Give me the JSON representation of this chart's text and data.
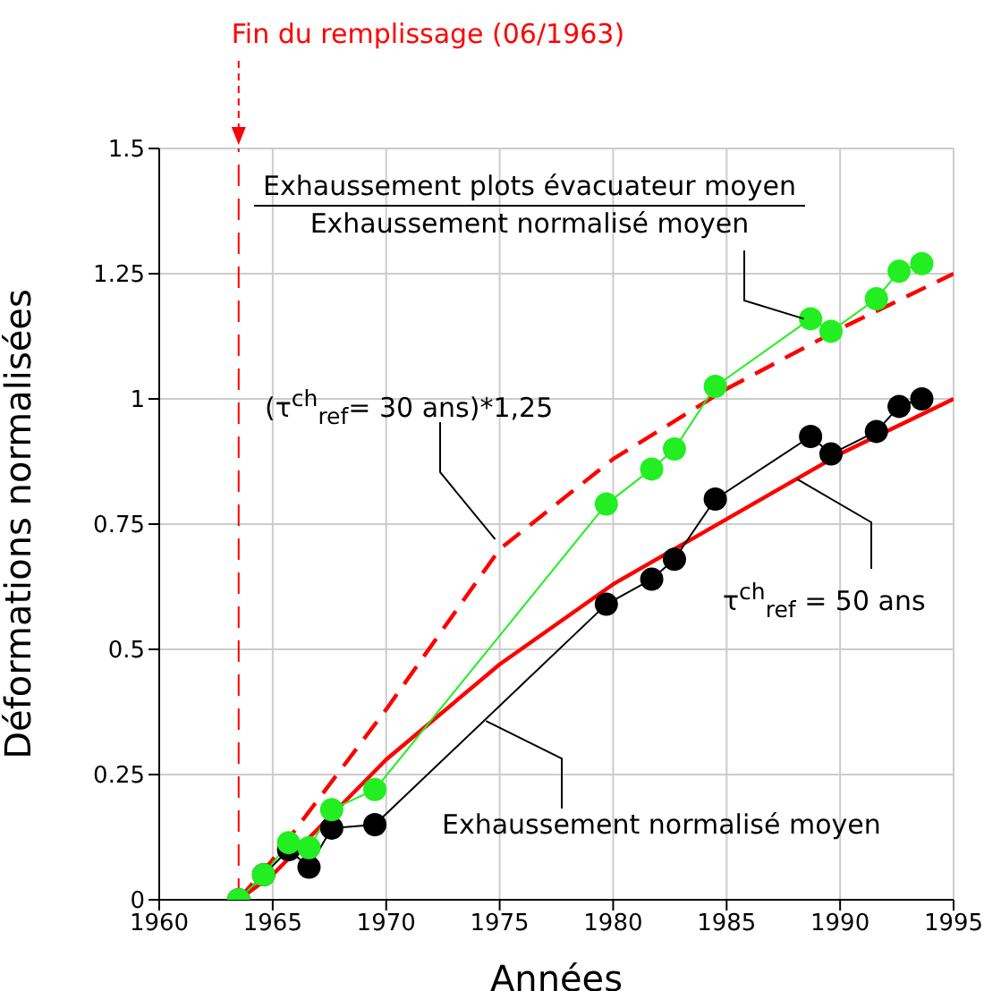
{
  "chart_data": {
    "type": "line",
    "xlabel": "Années",
    "ylabel": "Déformations normalisées",
    "xlim": [
      1960,
      1995
    ],
    "xticks": [
      1960,
      1965,
      1970,
      1975,
      1980,
      1985,
      1990,
      1995
    ],
    "ylim": [
      0,
      1.5
    ],
    "yticks": [
      0,
      0.25,
      0.5,
      0.75,
      1,
      1.25,
      1.5
    ],
    "grid": true,
    "series": [
      {
        "type": "line",
        "color": "#ff0000",
        "line_style": "dashed",
        "marker": "none",
        "x": [
          1963.5,
          1965,
          1970,
          1975,
          1980,
          1985,
          1990,
          1995
        ],
        "values": [
          0,
          0.08,
          0.38,
          0.7,
          0.88,
          1.02,
          1.14,
          1.25
        ]
      },
      {
        "type": "line",
        "color": "#ff0000",
        "line_style": "solid",
        "marker": "none",
        "x": [
          1963.5,
          1965,
          1970,
          1975,
          1980,
          1985,
          1990,
          1995
        ],
        "values": [
          0,
          0.05,
          0.28,
          0.47,
          0.63,
          0.76,
          0.89,
          1.0
        ]
      },
      {
        "type": "line",
        "color": "#000000",
        "line_style": "solid",
        "marker": "circle",
        "x": [
          1963.5,
          1964.6,
          1965.7,
          1966.6,
          1967.6,
          1969.5,
          1979.7,
          1981.7,
          1982.7,
          1984.5,
          1988.7,
          1989.6,
          1991.6,
          1992.6,
          1993.6
        ],
        "values": [
          0,
          0.05,
          0.1,
          0.065,
          0.143,
          0.15,
          0.59,
          0.64,
          0.68,
          0.8,
          0.925,
          0.89,
          0.935,
          0.985,
          1.0
        ]
      },
      {
        "type": "line",
        "color": "#22ee22",
        "line_style": "solid",
        "marker": "circle",
        "x": [
          1963.5,
          1964.6,
          1965.7,
          1966.6,
          1967.6,
          1969.5,
          1979.7,
          1981.7,
          1982.7,
          1984.5,
          1988.7,
          1989.6,
          1991.6,
          1992.6,
          1993.6
        ],
        "values": [
          0,
          0.05,
          0.114,
          0.104,
          0.18,
          0.22,
          0.79,
          0.86,
          0.9,
          1.025,
          1.16,
          1.135,
          1.2,
          1.255,
          1.27
        ]
      }
    ],
    "ref_lines": [
      {
        "axis": "x",
        "value": 1963.5,
        "label": "Fin du remplissage (06/1963)",
        "color": "#ff0000",
        "line_style": "dashed"
      }
    ],
    "annotations": [
      "Exhaussement plots évacuateur moyen",
      {
        "text": "Exhaussement normalisé moyen",
        "x": 1988.4,
        "y": 1.16
      },
      {
        "text": "(τ$^{ch}$$_{ref}$= 30 ans)*1,25",
        "x": 1974.8,
        "y": 0.72
      },
      {
        "text": "τ$^{ch}$$_{ref}$ = 50 ans",
        "x": 1988.1,
        "y": 0.84
      },
      {
        "text": "Exhaussement normalisé moyen",
        "x": 1974.4,
        "y": 0.357
      }
    ]
  }
}
